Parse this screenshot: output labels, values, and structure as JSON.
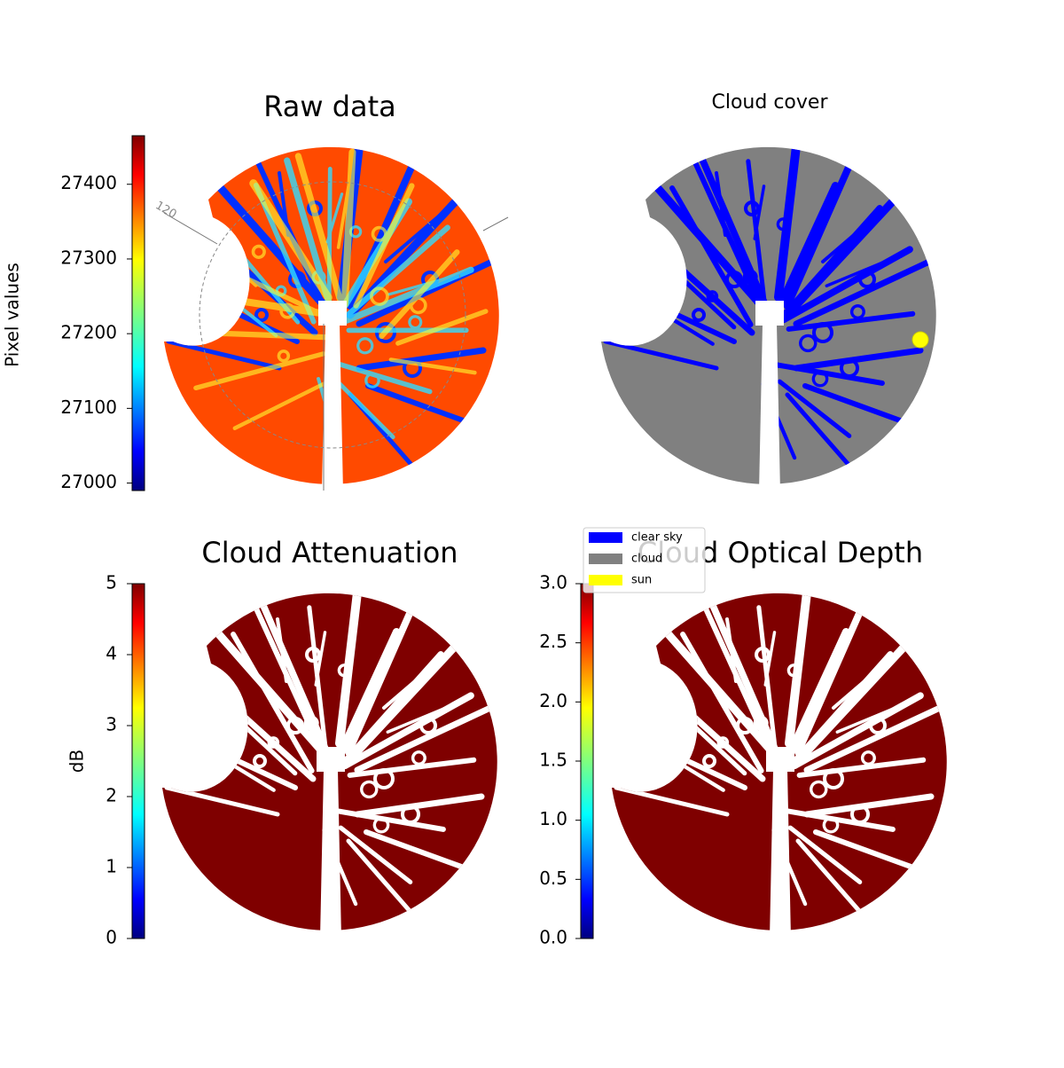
{
  "chart_data": [
    {
      "type": "image",
      "title": "Raw data",
      "colormap": "jet",
      "colorbar_label": "Pixel values",
      "ylim": [
        26990,
        27465
      ],
      "yticks": [
        27000,
        27100,
        27200,
        27300,
        27400
      ],
      "annotation": "120"
    },
    {
      "type": "image",
      "title": "Cloud cover",
      "series": [
        {
          "name": "clear sky",
          "color": "#0000ff"
        },
        {
          "name": "cloud",
          "color": "#808080"
        },
        {
          "name": "sun",
          "color": "#ffff00"
        }
      ]
    },
    {
      "type": "image",
      "title": "Cloud Attenuation",
      "colormap": "jet",
      "colorbar_label": "dB",
      "ylim": [
        0,
        5
      ],
      "yticks": [
        0,
        1,
        2,
        3,
        4,
        5
      ]
    },
    {
      "type": "image",
      "title": "Cloud Optical Depth",
      "colormap": "jet",
      "ylim": [
        0,
        3
      ],
      "yticks": [
        {
          "value": 0,
          "label": "0.0"
        },
        {
          "value": 0.5,
          "label": "0.5"
        },
        {
          "value": 1,
          "label": "1.0"
        },
        {
          "value": 1.5,
          "label": "1.5"
        },
        {
          "value": 2,
          "label": "2.0"
        },
        {
          "value": 2.5,
          "label": "2.5"
        },
        {
          "value": 3,
          "label": "3.0"
        }
      ]
    }
  ]
}
